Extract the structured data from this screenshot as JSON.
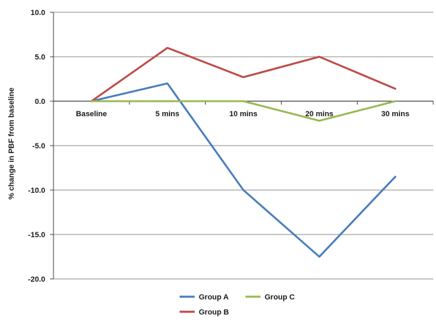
{
  "chart_data": {
    "type": "line",
    "categories": [
      "Baseline",
      "5 mins",
      "10 mins",
      "20 mins",
      "30 mins"
    ],
    "series": [
      {
        "name": "Group A",
        "color": "#4a7ebb",
        "values": [
          0.0,
          2.0,
          -10.0,
          -17.5,
          -8.5
        ]
      },
      {
        "name": "Group B",
        "color": "#be4b48",
        "values": [
          0.0,
          6.0,
          2.7,
          5.0,
          1.4
        ]
      },
      {
        "name": "Group C",
        "color": "#98b954",
        "values": [
          0.0,
          0.0,
          0.0,
          -2.2,
          0.0
        ]
      }
    ],
    "ylabel": "% change in PBF from baseline",
    "ylim": [
      -20,
      10
    ],
    "yticks": [
      "10.0",
      "5.0",
      "0.0",
      "-5.0",
      "-10.0",
      "-15.0",
      "-20.0"
    ],
    "grid": true,
    "legend": "bottom"
  }
}
